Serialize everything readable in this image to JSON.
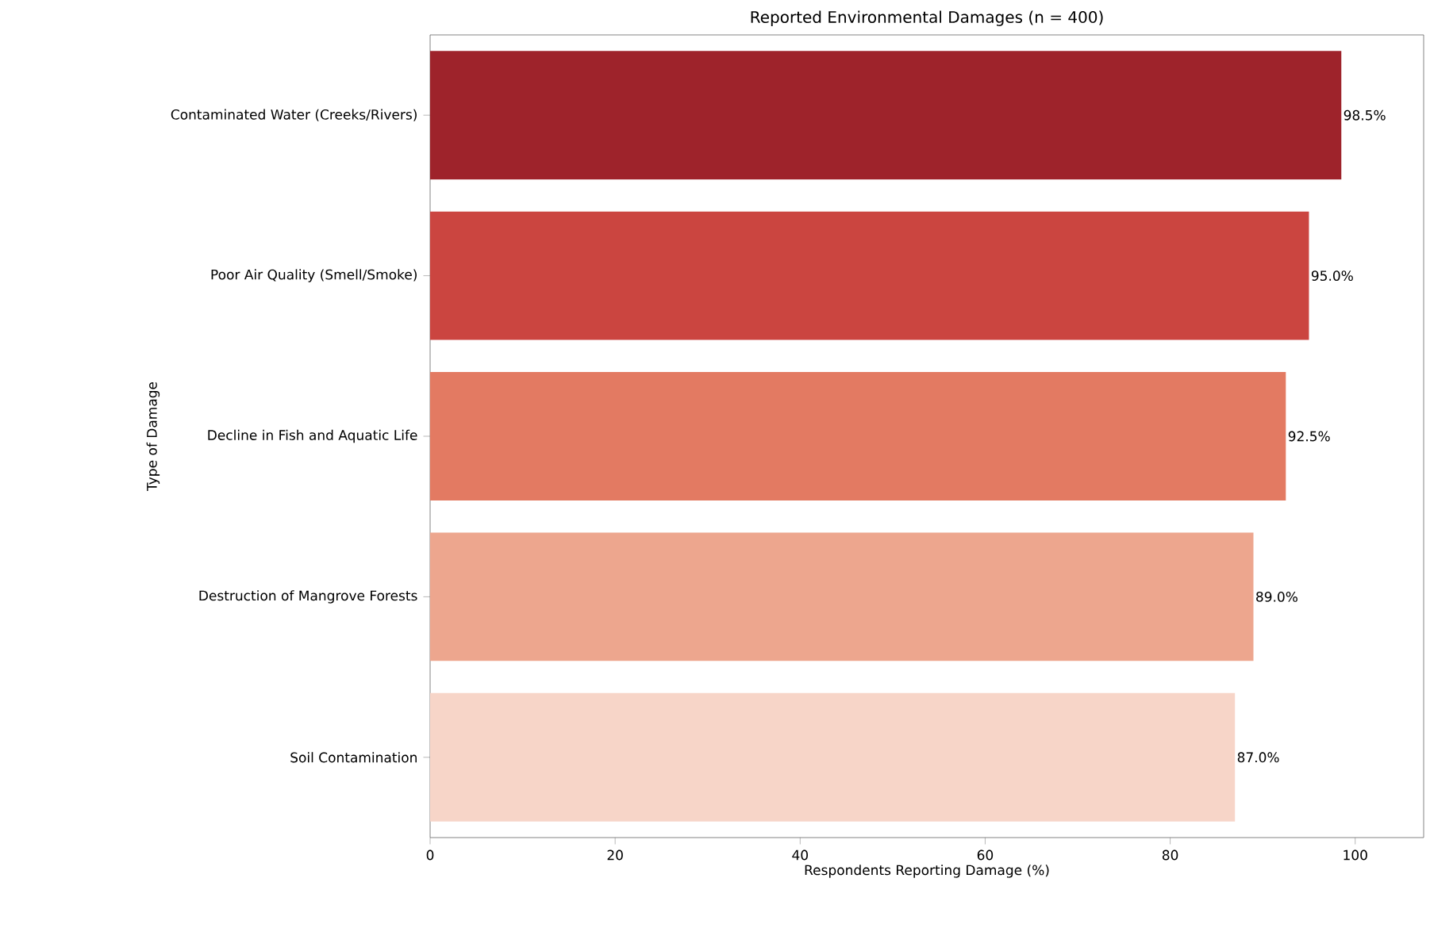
{
  "chart_data": {
    "type": "bar",
    "orientation": "horizontal",
    "title": "Reported Environmental Damages (n = 400)",
    "xlabel": "Respondents Reporting Damage (%)",
    "ylabel": "Type of Damage",
    "categories": [
      "Contaminated Water (Creeks/Rivers)",
      "Poor Air Quality (Smell/Smoke)",
      "Decline in Fish and Aquatic Life",
      "Destruction of Mangrove Forests",
      "Soil Contamination"
    ],
    "values": [
      98.5,
      95.0,
      92.5,
      89.0,
      87.0
    ],
    "value_labels": [
      "98.5%",
      "95.0%",
      "92.5%",
      "89.0%",
      "87.0%"
    ],
    "colors": [
      "#9e232b",
      "#cb4540",
      "#e37a62",
      "#eda68e",
      "#f7d5c8"
    ],
    "xlim": [
      0,
      107.4
    ],
    "xticks": [
      0,
      20,
      40,
      60,
      80,
      100
    ]
  }
}
